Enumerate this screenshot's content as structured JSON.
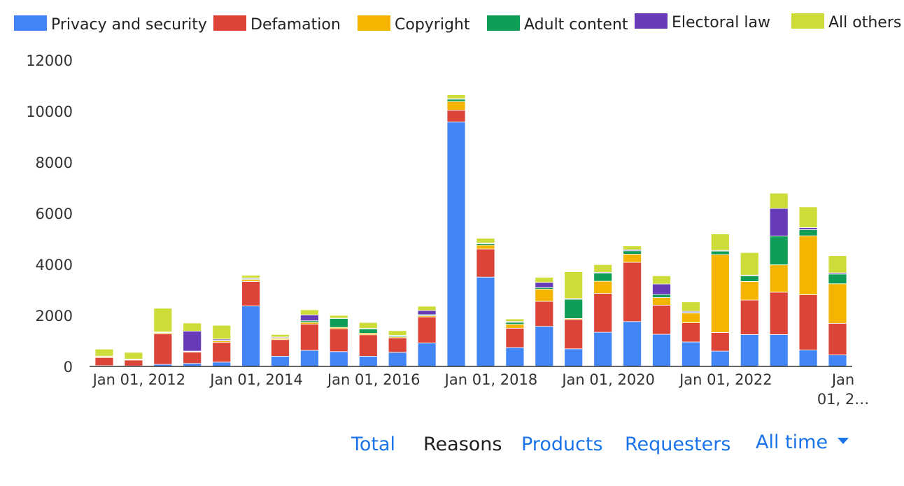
{
  "chart_data": {
    "type": "bar",
    "stacked": true,
    "legend_position": "top",
    "series_order": [
      "Privacy and security",
      "Defamation",
      "Copyright",
      "Adult content",
      "Electoral law",
      "All others"
    ],
    "series": [
      {
        "name": "Privacy and security",
        "color": "#4285f4"
      },
      {
        "name": "Defamation",
        "color": "#db4437"
      },
      {
        "name": "Copyright",
        "color": "#f4b400"
      },
      {
        "name": "Adult content",
        "color": "#0f9d58"
      },
      {
        "name": "Electoral law",
        "color": "#673ab7"
      },
      {
        "name": "All others",
        "color": "#cddc39"
      }
    ],
    "y_ticks": [
      0,
      2000,
      4000,
      6000,
      8000,
      10000,
      12000
    ],
    "ylim": [
      0,
      12000
    ],
    "x_ticks": [
      {
        "label": "Jan 01, 2012",
        "bar_index": 1
      },
      {
        "label": "Jan 01, 2014",
        "bar_index": 5
      },
      {
        "label": "Jan 01, 2016",
        "bar_index": 9
      },
      {
        "label": "Jan 01, 2018",
        "bar_index": 13
      },
      {
        "label": "Jan 01, 2020",
        "bar_index": 17
      },
      {
        "label": "Jan 01, 2022",
        "bar_index": 21
      },
      {
        "label": "Jan 01, 2…",
        "bar_index": 25
      }
    ],
    "bars": [
      [
        30,
        320,
        40,
        10,
        10,
        270
      ],
      [
        20,
        230,
        20,
        10,
        10,
        260
      ],
      [
        80,
        1200,
        40,
        20,
        10,
        930
      ],
      [
        120,
        440,
        20,
        20,
        780,
        320
      ],
      [
        170,
        770,
        60,
        20,
        50,
        540
      ],
      [
        2370,
        960,
        70,
        30,
        30,
        110
      ],
      [
        400,
        650,
        50,
        20,
        30,
        100
      ],
      [
        630,
        1030,
        70,
        60,
        230,
        200
      ],
      [
        580,
        900,
        50,
        350,
        10,
        110
      ],
      [
        400,
        840,
        60,
        170,
        20,
        230
      ],
      [
        550,
        570,
        40,
        40,
        20,
        180
      ],
      [
        920,
        1020,
        50,
        40,
        160,
        170
      ],
      [
        9580,
        460,
        340,
        90,
        20,
        150
      ],
      [
        3500,
        1100,
        150,
        60,
        30,
        180
      ],
      [
        740,
        760,
        150,
        80,
        30,
        100
      ],
      [
        1570,
        980,
        480,
        60,
        200,
        200
      ],
      [
        690,
        1150,
        40,
        750,
        30,
        1050
      ],
      [
        1340,
        1520,
        480,
        320,
        30,
        300
      ],
      [
        1760,
        2320,
        320,
        130,
        40,
        150
      ],
      [
        1260,
        1140,
        300,
        120,
        410,
        320
      ],
      [
        960,
        750,
        380,
        30,
        40,
        370
      ],
      [
        600,
        730,
        3050,
        140,
        30,
        640
      ],
      [
        1250,
        1350,
        730,
        220,
        30,
        880
      ],
      [
        1250,
        1660,
        1070,
        1130,
        1080,
        600
      ],
      [
        640,
        2170,
        2310,
        240,
        80,
        810
      ],
      [
        450,
        1240,
        1550,
        380,
        50,
        670
      ]
    ]
  },
  "tabs": {
    "total": "Total",
    "reasons": "Reasons",
    "products": "Products",
    "requesters": "Requesters",
    "range": "All time"
  }
}
